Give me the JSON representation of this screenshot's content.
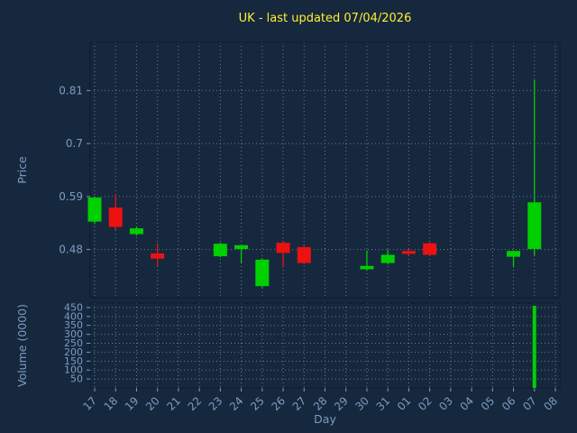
{
  "chart_data": {
    "type": "candlestick",
    "title": "UK - last updated 07/04/2026",
    "xlabel": "Day",
    "categories": [
      "17",
      "18",
      "19",
      "20",
      "21",
      "22",
      "23",
      "24",
      "25",
      "26",
      "27",
      "28",
      "29",
      "30",
      "31",
      "01",
      "02",
      "03",
      "04",
      "05",
      "06",
      "07",
      "08"
    ],
    "price_axis": {
      "label": "Price",
      "ticks": [
        0.48,
        0.59,
        0.7,
        0.81
      ],
      "ylim": [
        0.38,
        0.91
      ]
    },
    "volume_axis": {
      "label": "Volume (0000)",
      "ticks": [
        50,
        100,
        150,
        200,
        250,
        300,
        350,
        400,
        450
      ],
      "ylim": [
        0,
        475
      ]
    },
    "grid": "dotted",
    "legend": "none",
    "candles": [
      {
        "day": "17",
        "open": 0.538,
        "high": 0.59,
        "low": 0.533,
        "close": 0.588,
        "volume": 0
      },
      {
        "day": "18",
        "open": 0.567,
        "high": 0.595,
        "low": 0.52,
        "close": 0.527,
        "volume": 0
      },
      {
        "day": "19",
        "open": 0.512,
        "high": 0.527,
        "low": 0.509,
        "close": 0.524,
        "volume": 0
      },
      {
        "day": "20",
        "open": 0.472,
        "high": 0.493,
        "low": 0.445,
        "close": 0.461,
        "volume": 0
      },
      {
        "day": "23",
        "open": 0.466,
        "high": 0.494,
        "low": 0.464,
        "close": 0.492,
        "volume": 0
      },
      {
        "day": "24",
        "open": 0.481,
        "high": 0.49,
        "low": 0.451,
        "close": 0.489,
        "volume": 0
      },
      {
        "day": "25",
        "open": 0.404,
        "high": 0.462,
        "low": 0.401,
        "close": 0.459,
        "volume": 0
      },
      {
        "day": "26",
        "open": 0.494,
        "high": 0.496,
        "low": 0.443,
        "close": 0.473,
        "volume": 0
      },
      {
        "day": "27",
        "open": 0.485,
        "high": 0.488,
        "low": 0.45,
        "close": 0.452,
        "volume": 0
      },
      {
        "day": "30",
        "open": 0.439,
        "high": 0.478,
        "low": 0.436,
        "close": 0.446,
        "volume": 0
      },
      {
        "day": "31",
        "open": 0.452,
        "high": 0.48,
        "low": 0.449,
        "close": 0.469,
        "volume": 0
      },
      {
        "day": "01",
        "open": 0.477,
        "high": 0.481,
        "low": 0.467,
        "close": 0.471,
        "volume": 0
      },
      {
        "day": "02",
        "open": 0.493,
        "high": 0.495,
        "low": 0.467,
        "close": 0.469,
        "volume": 0
      },
      {
        "day": "06",
        "open": 0.465,
        "high": 0.478,
        "low": 0.443,
        "close": 0.477,
        "volume": 0
      },
      {
        "day": "07",
        "open": 0.481,
        "high": 0.832,
        "low": 0.468,
        "close": 0.578,
        "volume": 460
      }
    ],
    "colors": {
      "background": "#16283e",
      "title": "#ffee33",
      "label": "#7d9cc0",
      "grid": "#7a8a99",
      "spine": "#0d1b2b",
      "up": "#00cf00",
      "down": "#ee1111"
    }
  }
}
